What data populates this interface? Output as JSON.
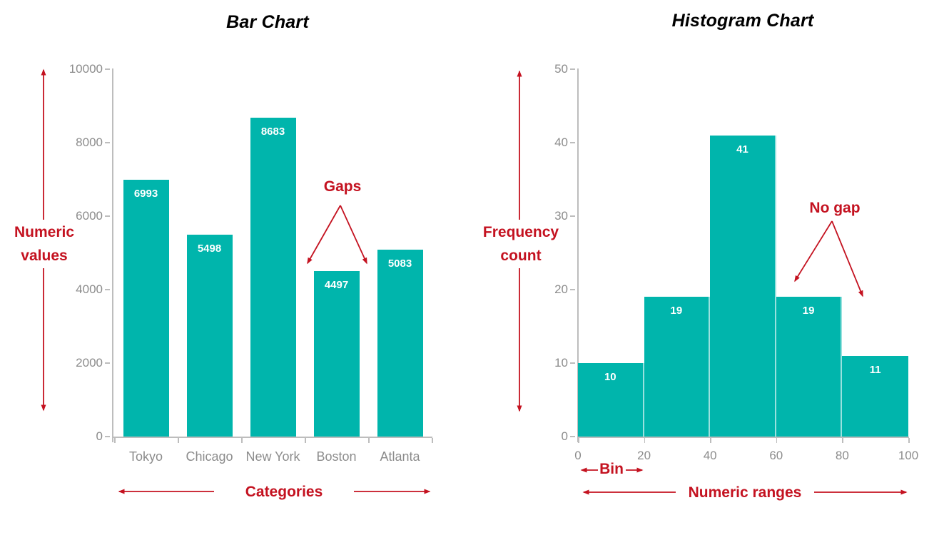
{
  "colors": {
    "bar_fill": "#00b5ac",
    "bar_separator": "rgba(255,255,255,0.6)",
    "annotation_red": "#c41220",
    "axis_line": "#bdbdbd",
    "tick_label": "#8c8c8c",
    "title": "#000000",
    "bar_value_label": "#ffffff"
  },
  "chart_data": [
    {
      "type": "bar",
      "title": "Bar Chart",
      "categories": [
        "Tokyo",
        "Chicago",
        "New York",
        "Boston",
        "Atlanta"
      ],
      "values": [
        6993,
        5498,
        8683,
        4497,
        5083
      ],
      "ylim": [
        0,
        10000
      ],
      "yticks": [
        0,
        2000,
        4000,
        6000,
        8000,
        10000
      ],
      "grid": false,
      "legend": false,
      "bars_have_gaps": true,
      "annotations": {
        "y_axis_label": "Numeric values",
        "x_axis_label": "Categories",
        "gap_callout": "Gaps"
      }
    },
    {
      "type": "histogram",
      "title": "Histogram Chart",
      "bin_edges": [
        0,
        20,
        40,
        60,
        80,
        100
      ],
      "values": [
        10,
        19,
        41,
        19,
        11
      ],
      "xticks": [
        0,
        20,
        40,
        60,
        80,
        100
      ],
      "ylim": [
        0,
        50
      ],
      "yticks": [
        0,
        10,
        20,
        30,
        40,
        50
      ],
      "grid": false,
      "legend": false,
      "bars_have_gaps": false,
      "annotations": {
        "y_axis_label": "Frequency count",
        "x_axis_label": "Numeric ranges",
        "bin_width_label": "Bin",
        "gap_callout": "No gap"
      }
    }
  ]
}
